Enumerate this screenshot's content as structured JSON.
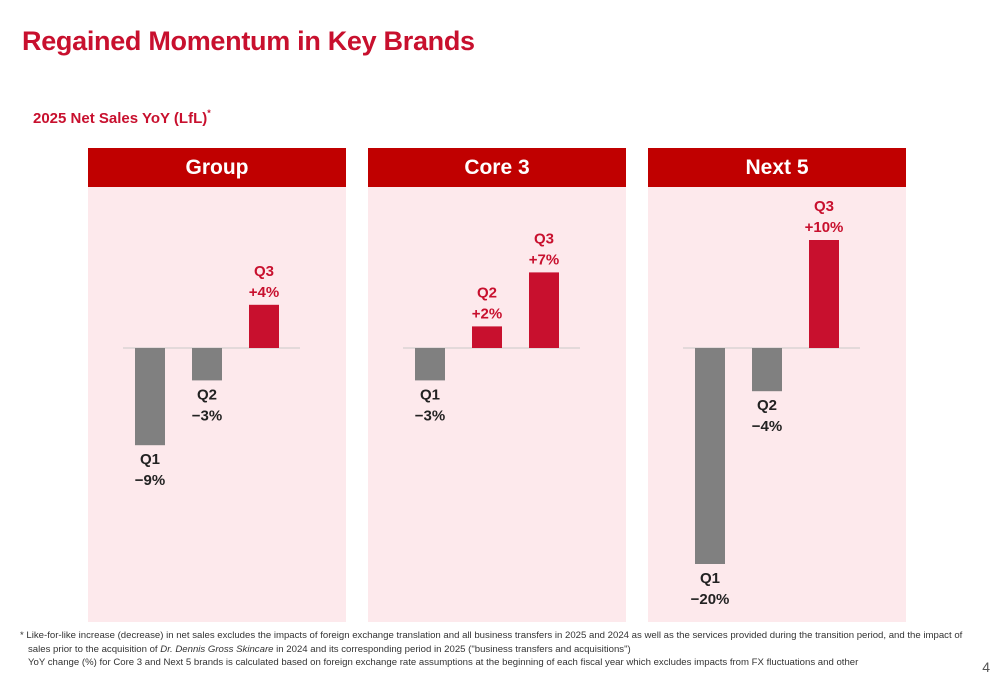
{
  "title": "Regained Momentum in Key Brands",
  "subtitle": {
    "text": "2025 Net Sales YoY (LfL)",
    "marker": "*"
  },
  "colors": {
    "accent": "#c8102e",
    "header_bg": "#c00000",
    "panel_bg": "#fde9ec",
    "negative_bar": "#808080",
    "positive_bar": "#c8102e"
  },
  "chart_data": [
    {
      "type": "bar",
      "title": "Group",
      "categories": [
        "Q1",
        "Q2",
        "Q3"
      ],
      "values": [
        -9,
        -3,
        4
      ],
      "value_labels": [
        "−9%",
        "−3%",
        "+4%"
      ],
      "unit": "%"
    },
    {
      "type": "bar",
      "title": "Core 3",
      "categories": [
        "Q1",
        "Q2",
        "Q3"
      ],
      "values": [
        -3,
        2,
        7
      ],
      "value_labels": [
        "−3%",
        "+2%",
        "+7%"
      ],
      "unit": "%"
    },
    {
      "type": "bar",
      "title": "Next 5",
      "categories": [
        "Q1",
        "Q2",
        "Q3"
      ],
      "values": [
        -20,
        -4,
        10
      ],
      "value_labels": [
        "−20%",
        "−4%",
        "+10%"
      ],
      "unit": "%"
    }
  ],
  "footnote": {
    "line1": "* Like-for-like increase (decrease) in net sales excludes the impacts of foreign exchange translation and all business transfers in 2025 and 2024 as well as the services provided during the transition period, and the impact of",
    "line2_pre": "sales prior to the acquisition of ",
    "line2_brand": "Dr. Dennis Gross Skincare",
    "line2_post": " in 2024 and its corresponding period in 2025 (\"business transfers and acquisitions\")",
    "line3": "YoY change (%) for Core 3 and Next 5 brands is calculated based on foreign exchange rate assumptions at the beginning of each fiscal year which excludes impacts from FX fluctuations and other"
  },
  "page_number": "4"
}
